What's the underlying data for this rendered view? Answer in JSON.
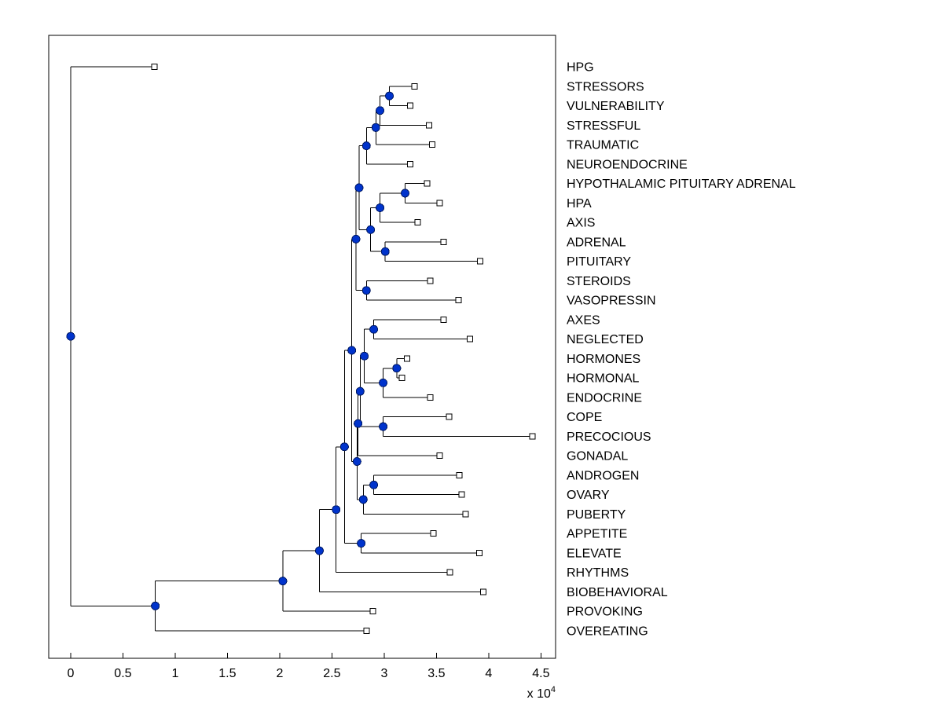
{
  "figure": {
    "background": "#ffffff",
    "axis_color": "#000000",
    "line_color": "#000000",
    "node_fill": "#0033cc",
    "node_edge": "#001a66",
    "leaf_marker": "open-square",
    "node_marker": "filled-blue-circle"
  },
  "chart_data": {
    "type": "dendrogram",
    "orientation": "horizontal-right-labels",
    "title": "",
    "xlabel": "",
    "ylabel": "",
    "x_axis": {
      "range": [
        -0.21,
        4.64
      ],
      "ticks": [
        0,
        0.5,
        1,
        1.5,
        2,
        2.5,
        3,
        3.5,
        4,
        4.5
      ],
      "tick_labels": [
        "0",
        "0.5",
        "1",
        "1.5",
        "2",
        "2.5",
        "3",
        "3.5",
        "4",
        "4.5"
      ],
      "multiplier": {
        "prefix": "x 10",
        "exponent": "4"
      },
      "units_scale": 10000
    },
    "leaves": [
      {
        "label": "HPG",
        "value": 0.8
      },
      {
        "label": "STRESSORS",
        "value": 3.29
      },
      {
        "label": "VULNERABILITY",
        "value": 3.25
      },
      {
        "label": "STRESSFUL",
        "value": 3.43
      },
      {
        "label": "TRAUMATIC",
        "value": 3.46
      },
      {
        "label": "NEUROENDOCRINE",
        "value": 3.25
      },
      {
        "label": "HYPOTHALAMIC PITUITARY ADRENAL",
        "value": 3.41
      },
      {
        "label": "HPA",
        "value": 3.53
      },
      {
        "label": "AXIS",
        "value": 3.32
      },
      {
        "label": "ADRENAL",
        "value": 3.57
      },
      {
        "label": "PITUITARY",
        "value": 3.92
      },
      {
        "label": "STEROIDS",
        "value": 3.44
      },
      {
        "label": "VASOPRESSIN",
        "value": 3.71
      },
      {
        "label": "AXES",
        "value": 3.57
      },
      {
        "label": "NEGLECTED",
        "value": 3.82
      },
      {
        "label": "HORMONES",
        "value": 3.22
      },
      {
        "label": "HORMONAL",
        "value": 3.17
      },
      {
        "label": "ENDOCRINE",
        "value": 3.44
      },
      {
        "label": "COPE",
        "value": 3.62
      },
      {
        "label": "PRECOCIOUS",
        "value": 4.42
      },
      {
        "label": "GONADAL",
        "value": 3.53
      },
      {
        "label": "ANDROGEN",
        "value": 3.72
      },
      {
        "label": "OVARY",
        "value": 3.74
      },
      {
        "label": "PUBERTY",
        "value": 3.78
      },
      {
        "label": "APPETITE",
        "value": 3.47
      },
      {
        "label": "ELEVATE",
        "value": 3.91
      },
      {
        "label": "RHYTHMS",
        "value": 3.63
      },
      {
        "label": "BIOBEHAVIORAL",
        "value": 3.95
      },
      {
        "label": "PROVOKING",
        "value": 2.89
      },
      {
        "label": "OVEREATING",
        "value": 2.83
      }
    ],
    "tree": {
      "h": 0.0,
      "c": [
        {
          "leaf": "HPG"
        },
        {
          "h": 0.81,
          "c": [
            {
              "h": 2.03,
              "c": [
                {
                  "h": 2.38,
                  "c": [
                    {
                      "h": 2.54,
                      "c": [
                        {
                          "h": 2.62,
                          "c": [
                            {
                              "h": 2.69,
                              "c": [
                                {
                                  "h": 2.73,
                                  "c": [
                                    {
                                      "h": 2.76,
                                      "c": [
                                        {
                                          "h": 2.83,
                                          "c": [
                                            {
                                              "h": 2.92,
                                              "c": [
                                                {
                                                  "h": 2.96,
                                                  "c": [
                                                    {
                                                      "h": 3.05,
                                                      "c": [
                                                        {
                                                          "leaf": "STRESSORS"
                                                        },
                                                        {
                                                          "leaf": "VULNERABILITY"
                                                        }
                                                      ]
                                                    },
                                                    {
                                                      "leaf": "STRESSFUL"
                                                    }
                                                  ]
                                                },
                                                {
                                                  "leaf": "TRAUMATIC"
                                                }
                                              ]
                                            },
                                            {
                                              "leaf": "NEUROENDOCRINE"
                                            }
                                          ]
                                        },
                                        {
                                          "h": 2.87,
                                          "c": [
                                            {
                                              "h": 2.96,
                                              "c": [
                                                {
                                                  "h": 3.2,
                                                  "c": [
                                                    {
                                                      "leaf": "HYPOTHALAMIC PITUITARY ADRENAL"
                                                    },
                                                    {
                                                      "leaf": "HPA"
                                                    }
                                                  ]
                                                },
                                                {
                                                  "leaf": "AXIS"
                                                }
                                              ]
                                            },
                                            {
                                              "h": 3.01,
                                              "c": [
                                                {
                                                  "leaf": "ADRENAL"
                                                },
                                                {
                                                  "leaf": "PITUITARY"
                                                }
                                              ]
                                            }
                                          ]
                                        }
                                      ]
                                    },
                                    {
                                      "h": 2.83,
                                      "c": [
                                        {
                                          "leaf": "STEROIDS"
                                        },
                                        {
                                          "leaf": "VASOPRESSIN"
                                        }
                                      ]
                                    }
                                  ]
                                },
                                {
                                  "h": 2.74,
                                  "c": [
                                    {
                                      "h": 2.75,
                                      "c": [
                                        {
                                          "h": 2.77,
                                          "c": [
                                            {
                                              "h": 2.81,
                                              "c": [
                                                {
                                                  "h": 2.9,
                                                  "c": [
                                                    {
                                                      "leaf": "AXES"
                                                    },
                                                    {
                                                      "leaf": "NEGLECTED"
                                                    }
                                                  ]
                                                },
                                                {
                                                  "h": 2.99,
                                                  "c": [
                                                    {
                                                      "h": 3.12,
                                                      "c": [
                                                        {
                                                          "leaf": "HORMONES"
                                                        },
                                                        {
                                                          "leaf": "HORMONAL"
                                                        }
                                                      ]
                                                    },
                                                    {
                                                      "leaf": "ENDOCRINE"
                                                    }
                                                  ]
                                                }
                                              ]
                                            },
                                            {
                                              "h": 2.99,
                                              "c": [
                                                {
                                                  "leaf": "COPE"
                                                },
                                                {
                                                  "leaf": "PRECOCIOUS"
                                                }
                                              ]
                                            }
                                          ]
                                        },
                                        {
                                          "leaf": "GONADAL"
                                        }
                                      ]
                                    },
                                    {
                                      "h": 2.8,
                                      "c": [
                                        {
                                          "h": 2.9,
                                          "c": [
                                            {
                                              "leaf": "ANDROGEN"
                                            },
                                            {
                                              "leaf": "OVARY"
                                            }
                                          ]
                                        },
                                        {
                                          "leaf": "PUBERTY"
                                        }
                                      ]
                                    }
                                  ]
                                }
                              ]
                            },
                            {
                              "h": 2.78,
                              "c": [
                                {
                                  "leaf": "APPETITE"
                                },
                                {
                                  "leaf": "ELEVATE"
                                }
                              ]
                            }
                          ]
                        },
                        {
                          "leaf": "RHYTHMS"
                        }
                      ]
                    },
                    {
                      "leaf": "BIOBEHAVIORAL"
                    }
                  ]
                },
                {
                  "leaf": "PROVOKING"
                }
              ]
            },
            {
              "leaf": "OVEREATING"
            }
          ]
        }
      ]
    }
  }
}
